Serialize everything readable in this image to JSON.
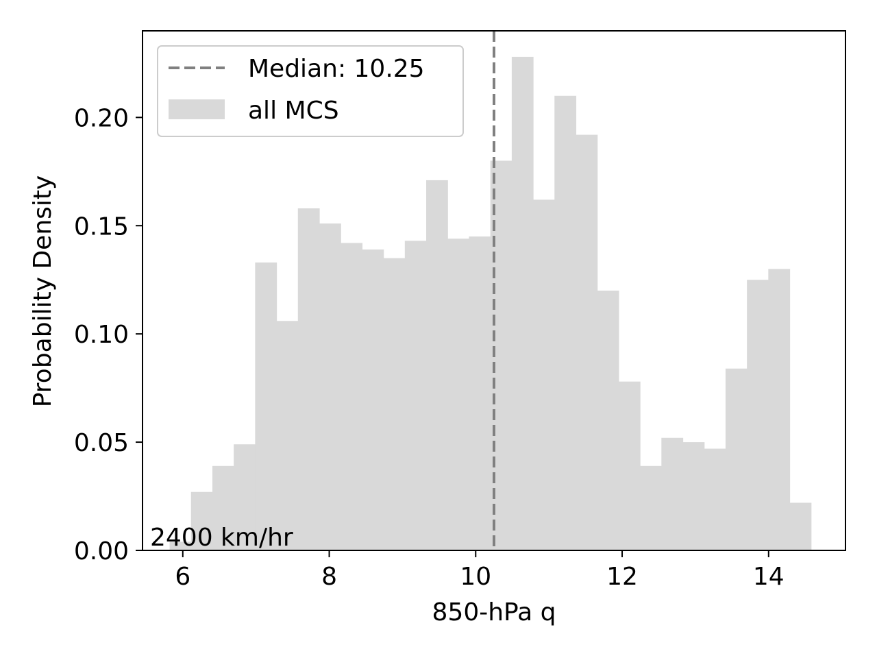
{
  "chart_data": {
    "type": "bar",
    "subtype": "histogram",
    "xlabel": "850-hPa q",
    "ylabel": "Probability Density",
    "xlim": [
      5.45,
      15.05
    ],
    "ylim": [
      0,
      0.24
    ],
    "xticks": [
      6,
      8,
      10,
      12,
      14
    ],
    "xtick_labels": [
      "6",
      "8",
      "10",
      "12",
      "14"
    ],
    "yticks": [
      0,
      0.05,
      0.1,
      0.15,
      0.2
    ],
    "ytick_labels": [
      "0.00",
      "0.05",
      "0.10",
      "0.15",
      "0.20"
    ],
    "grid": false,
    "bin_edges": [
      5.82,
      6.112,
      6.404,
      6.696,
      6.988,
      7.28,
      7.572,
      7.864,
      8.156,
      8.448,
      8.74,
      9.032,
      9.324,
      9.616,
      9.908,
      10.2,
      10.492,
      10.784,
      11.076,
      11.368,
      11.66,
      11.952,
      12.244,
      12.536,
      12.828,
      13.12,
      13.412,
      13.704,
      13.996,
      14.288,
      14.58
    ],
    "values": [
      0.004,
      0.027,
      0.039,
      0.049,
      0.133,
      0.106,
      0.158,
      0.151,
      0.142,
      0.139,
      0.135,
      0.143,
      0.171,
      0.144,
      0.145,
      0.18,
      0.228,
      0.162,
      0.21,
      0.192,
      0.12,
      0.078,
      0.039,
      0.052,
      0.05,
      0.047,
      0.084,
      0.125,
      0.13,
      0.022
    ],
    "series": [
      {
        "name": "all MCS",
        "color": "#d9d9d9"
      }
    ],
    "median_line": {
      "x": 10.25,
      "label": "Median: 10.25",
      "color": "#808080",
      "style": "dashed"
    },
    "legend": {
      "placement": "upper-left",
      "entries": [
        "Median: 10.25",
        "all MCS"
      ]
    },
    "annotation": "2400 km/hr"
  }
}
